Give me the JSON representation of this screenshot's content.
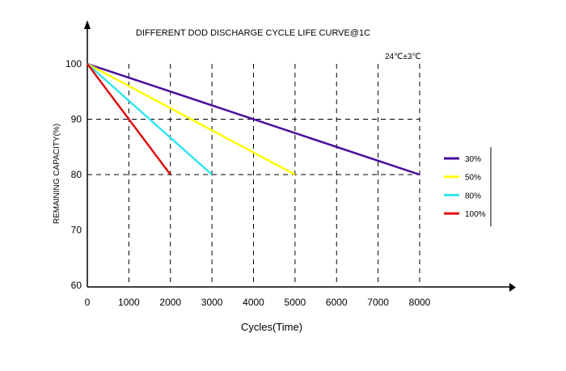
{
  "chart_data": {
    "type": "line",
    "title": "DIFFERENT DOD DISCHARGE CYCLE LIFE CURVE@1C",
    "annotation": "24℃±3℃",
    "xlabel": "Cycles(Time)",
    "ylabel": "REMAINING CAPACITY(%)",
    "xlim": [
      0,
      8000
    ],
    "ylim": [
      60,
      100
    ],
    "xticks": [
      0,
      1000,
      2000,
      3000,
      4000,
      5000,
      6000,
      7000,
      8000
    ],
    "yticks": [
      60,
      70,
      80,
      90,
      100
    ],
    "grid": {
      "vertical": "dashed at each x tick",
      "horizontal": [
        80,
        90
      ]
    },
    "legend_position": "right",
    "series": [
      {
        "name": "30%",
        "color": "#4b0f9b",
        "x": [
          0,
          8000
        ],
        "y": [
          100,
          80
        ]
      },
      {
        "name": "50%",
        "color": "#ffff00",
        "x": [
          0,
          5000
        ],
        "y": [
          100,
          80
        ]
      },
      {
        "name": "80%",
        "color": "#33e6f0",
        "x": [
          0,
          3000
        ],
        "y": [
          100,
          80
        ]
      },
      {
        "name": "100%",
        "color": "#e01010",
        "x": [
          0,
          2000
        ],
        "y": [
          100,
          80
        ]
      }
    ]
  }
}
